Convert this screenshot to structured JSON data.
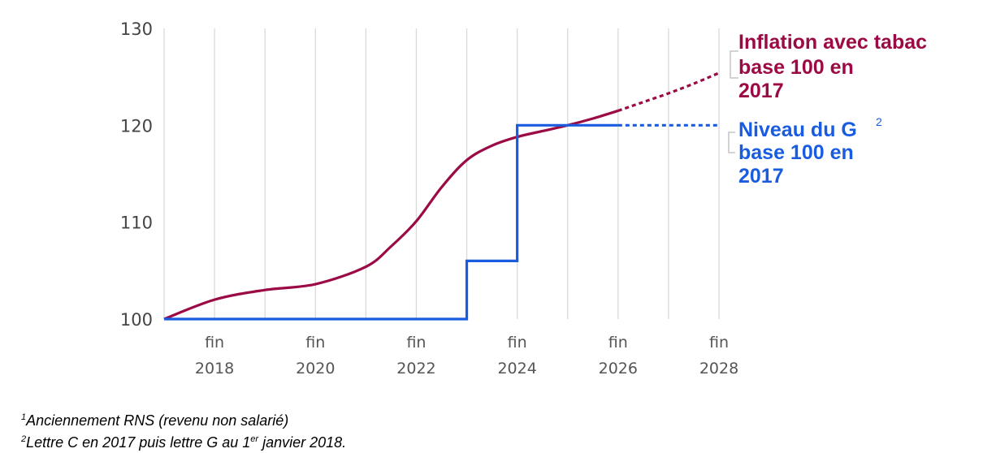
{
  "chart_data": {
    "type": "line",
    "ylim": [
      100,
      130
    ],
    "xlim": [
      2017,
      2028
    ],
    "y_ticks": [
      "100",
      "110",
      "120",
      "130"
    ],
    "x_ticks": [
      {
        "line1": "fin",
        "line2": "2018",
        "x": 2018
      },
      {
        "line1": "fin",
        "line2": "2020",
        "x": 2020
      },
      {
        "line1": "fin",
        "line2": "2022",
        "x": 2022
      },
      {
        "line1": "fin",
        "line2": "2024",
        "x": 2024
      },
      {
        "line1": "fin",
        "line2": "2026",
        "x": 2026
      },
      {
        "line1": "fin",
        "line2": "2028",
        "x": 2028
      }
    ],
    "gridlines_x": [
      2017,
      2018,
      2019,
      2020,
      2021,
      2022,
      2023,
      2024,
      2025,
      2026,
      2027,
      2028
    ],
    "grid": true,
    "series": [
      {
        "name": "Inflation avec tabac base 100 en 2017",
        "color": "#9b0a44",
        "style": "solid-then-dotted",
        "projection_from": 2026,
        "points": [
          [
            2017,
            100
          ],
          [
            2018,
            102.0
          ],
          [
            2019,
            103.0
          ],
          [
            2020,
            103.6
          ],
          [
            2021,
            105.4
          ],
          [
            2021.5,
            107.5
          ],
          [
            2022,
            110.1
          ],
          [
            2022.5,
            113.6
          ],
          [
            2023,
            116.4
          ],
          [
            2023.5,
            117.9
          ],
          [
            2024,
            118.8
          ],
          [
            2024.5,
            119.4
          ],
          [
            2025,
            120.0
          ],
          [
            2025.5,
            120.7
          ],
          [
            2026,
            121.5
          ],
          [
            2026.5,
            122.4
          ],
          [
            2027,
            123.3
          ],
          [
            2027.5,
            124.3
          ],
          [
            2028,
            125.4
          ]
        ]
      },
      {
        "name": "Niveau du G² base 100 en 2017",
        "color": "#1a5ce0",
        "style": "step-solid-then-dotted",
        "projection_from": 2026,
        "points": [
          [
            2017,
            100
          ],
          [
            2023,
            100
          ],
          [
            2023,
            106
          ],
          [
            2024,
            106
          ],
          [
            2024,
            120
          ],
          [
            2026,
            120
          ],
          [
            2028,
            120
          ]
        ]
      }
    ],
    "legend": [
      {
        "lines": [
          "Inflation avec tabac",
          "base 100 en",
          "2017"
        ],
        "sup": "",
        "color": "#9b0a44"
      },
      {
        "lines": [
          "Niveau du G",
          "base 100 en",
          "2017"
        ],
        "sup": "2",
        "color": "#1a5ce0"
      }
    ]
  },
  "footnotes": [
    {
      "sup": "1",
      "text": "Anciennement RNS (revenu non salarié)"
    },
    {
      "sup": "2",
      "text_before": "Lettre C en 2017 puis lettre G au 1",
      "sup_inner": "er",
      "text_after": " janvier 2018."
    }
  ]
}
